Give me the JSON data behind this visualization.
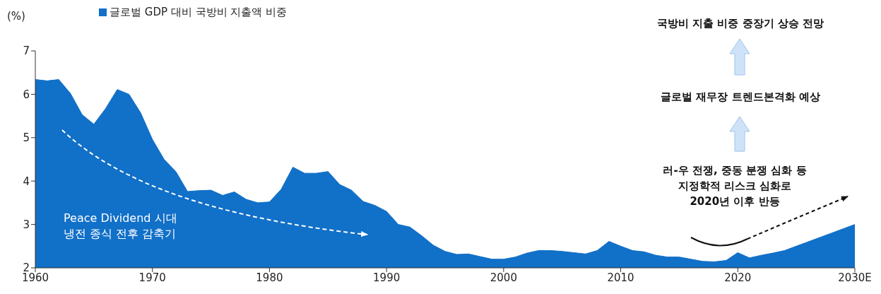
{
  "chart_data": {
    "type": "area",
    "ylabel": "(%)",
    "x": [
      1960,
      1961,
      1962,
      1963,
      1964,
      1965,
      1966,
      1967,
      1968,
      1969,
      1970,
      1971,
      1972,
      1973,
      1974,
      1975,
      1976,
      1977,
      1978,
      1979,
      1980,
      1981,
      1982,
      1983,
      1984,
      1985,
      1986,
      1987,
      1988,
      1989,
      1990,
      1991,
      1992,
      1993,
      1994,
      1995,
      1996,
      1997,
      1998,
      1999,
      2000,
      2001,
      2002,
      2003,
      2004,
      2005,
      2006,
      2007,
      2008,
      2009,
      2010,
      2011,
      2012,
      2013,
      2014,
      2015,
      2016,
      2017,
      2018,
      2019,
      2020,
      2021,
      2022,
      2023,
      2024,
      2025,
      2026,
      2027,
      2028,
      2029,
      2030
    ],
    "series": [
      {
        "name": "글로벌 GDP 대비 국방비 지출액 비중",
        "color": "#1170c8",
        "values": [
          6.34,
          6.31,
          6.34,
          6.02,
          5.53,
          5.31,
          5.67,
          6.11,
          6.0,
          5.57,
          4.96,
          4.5,
          4.22,
          3.76,
          3.78,
          3.79,
          3.67,
          3.75,
          3.58,
          3.5,
          3.52,
          3.81,
          4.32,
          4.18,
          4.18,
          4.22,
          3.92,
          3.79,
          3.53,
          3.44,
          3.3,
          3.0,
          2.94,
          2.74,
          2.52,
          2.38,
          2.31,
          2.32,
          2.26,
          2.2,
          2.2,
          2.25,
          2.34,
          2.4,
          2.4,
          2.38,
          2.35,
          2.32,
          2.4,
          2.61,
          2.5,
          2.4,
          2.37,
          2.29,
          2.25,
          2.25,
          2.2,
          2.15,
          2.14,
          2.17,
          2.35,
          2.23,
          2.29,
          2.34,
          2.4,
          2.5,
          2.6,
          2.7,
          2.8,
          2.9,
          3.0
        ]
      }
    ],
    "xlim": [
      1960,
      2030
    ],
    "xticks": [
      1960,
      1970,
      1980,
      1990,
      2000,
      2010,
      2020,
      {
        "value": 2030,
        "label": "2030E"
      }
    ],
    "ylim": [
      2,
      7
    ],
    "yticks": [
      2,
      3,
      4,
      5,
      6,
      7
    ],
    "grid": false,
    "legend": "top left",
    "marker": "none",
    "annotations": [
      "Peace Dividend 시대\n냉전 종식 전후 감축기",
      "국방비 지출 비중 중장기 상승 전망",
      "글로벌 재무장 트렌드본격화 예상",
      "러-우 전쟁, 중동 분쟁 심화 등\n지정학적 리스크 심화로\n2020년 이후 반등"
    ]
  }
}
